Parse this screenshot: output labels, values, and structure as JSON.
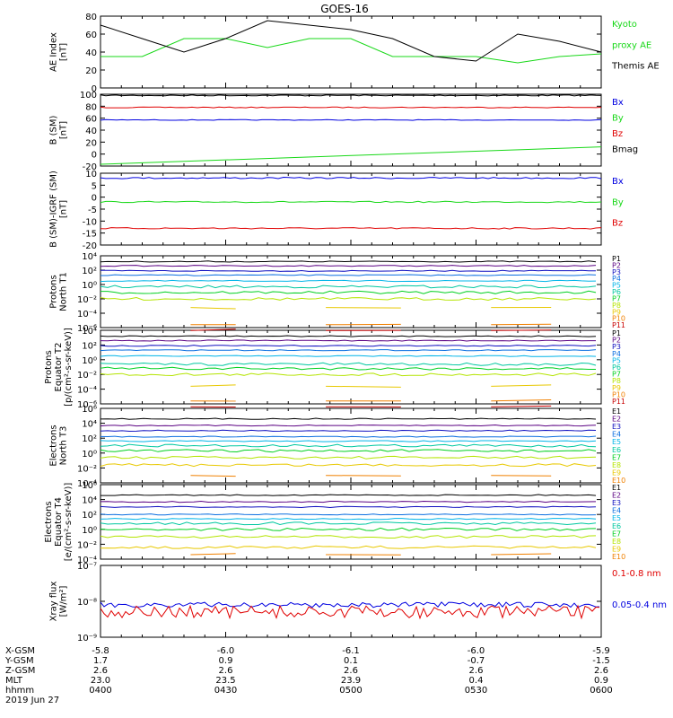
{
  "title": "GOES-16",
  "colors": {
    "black": "#000000",
    "red": "#e00000",
    "green": "#18d818",
    "blue": "#0000e0",
    "P1": "#000000",
    "P2": "#5a0082",
    "P3": "#1010c0",
    "P4": "#0a6ee0",
    "P5": "#00b4e8",
    "P6": "#00c8a0",
    "P7": "#00d020",
    "P8": "#b4e400",
    "P9": "#e8c800",
    "P10": "#f08000",
    "P11": "#c80000"
  },
  "panels": [
    {
      "id": "ae",
      "ylabel": [
        "AE Index",
        "[nT]"
      ],
      "ticks": [
        "80",
        "60",
        "40",
        "20",
        "0"
      ],
      "legend": [
        {
          "text": "Kyoto",
          "color": "green"
        },
        {
          "text": "proxy AE",
          "color": "green"
        },
        {
          "text": "Themis AE",
          "color": "black"
        }
      ]
    },
    {
      "id": "bsm",
      "ylabel": [
        "B (SM)",
        "[nT]"
      ],
      "ticks": [
        "100",
        "80",
        "60",
        "40",
        "20",
        "0",
        "-20"
      ],
      "legend": [
        {
          "text": "Bx",
          "color": "blue"
        },
        {
          "text": "By",
          "color": "green"
        },
        {
          "text": "Bz",
          "color": "red"
        },
        {
          "text": "Bmag",
          "color": "black"
        }
      ]
    },
    {
      "id": "bigrf",
      "ylabel": [
        "B (SM)-IGRF (SM)",
        "[nT]"
      ],
      "ticks": [
        "10",
        "5",
        "0",
        "-5",
        "-10",
        "-15",
        "-20"
      ],
      "legend": [
        {
          "text": "Bx",
          "color": "blue"
        },
        {
          "text": "By",
          "color": "green"
        },
        {
          "text": "Bz",
          "color": "red"
        }
      ]
    },
    {
      "id": "pn",
      "ylabel": [
        "Protons",
        "North T1"
      ],
      "ticks": [
        "10⁴",
        "10²",
        "10⁰",
        "10⁻²",
        "10⁻⁴",
        "10⁻⁶"
      ],
      "legend": [
        {
          "text": "P1"
        },
        {
          "text": "P2"
        },
        {
          "text": "P3"
        },
        {
          "text": "P4"
        },
        {
          "text": "P5"
        },
        {
          "text": "P6"
        },
        {
          "text": "P7"
        },
        {
          "text": "P8"
        },
        {
          "text": "P9"
        },
        {
          "text": "P10"
        },
        {
          "text": "P11"
        }
      ]
    },
    {
      "id": "pe",
      "ylabel": [
        "Protons",
        "Equator T2",
        "[p/(cm²-s-sr-keV)]"
      ],
      "ticks": [
        "10⁴",
        "10²",
        "10⁰",
        "10⁻²",
        "10⁻⁴",
        "10⁻⁶"
      ],
      "legend": [
        {
          "text": "P1"
        },
        {
          "text": "P2"
        },
        {
          "text": "P3"
        },
        {
          "text": "P4"
        },
        {
          "text": "P5"
        },
        {
          "text": "P6"
        },
        {
          "text": "P7"
        },
        {
          "text": "P8"
        },
        {
          "text": "P9"
        },
        {
          "text": "P10"
        },
        {
          "text": "P11"
        }
      ]
    },
    {
      "id": "en",
      "ylabel": [
        "Electrons",
        "North T3"
      ],
      "ticks": [
        "10⁶",
        "10⁴",
        "10²",
        "10⁰",
        "10⁻²",
        "10⁻⁴"
      ],
      "legend": [
        {
          "text": "E1"
        },
        {
          "text": "E2"
        },
        {
          "text": "E3"
        },
        {
          "text": "E4"
        },
        {
          "text": "E5"
        },
        {
          "text": "E6"
        },
        {
          "text": "E7"
        },
        {
          "text": "E8"
        },
        {
          "text": "E9"
        },
        {
          "text": "E10"
        }
      ]
    },
    {
      "id": "ee",
      "ylabel": [
        "Electrons",
        "Equator T4",
        "[e/(cm²-s-sr-keV)]"
      ],
      "ticks": [
        "10⁶",
        "10⁴",
        "10²",
        "10⁰",
        "10⁻²",
        "10⁻⁴"
      ],
      "legend": [
        {
          "text": "E1"
        },
        {
          "text": "E2"
        },
        {
          "text": "E3"
        },
        {
          "text": "E4"
        },
        {
          "text": "E5"
        },
        {
          "text": "E6"
        },
        {
          "text": "E7"
        },
        {
          "text": "E8"
        },
        {
          "text": "E9"
        },
        {
          "text": "E10"
        }
      ]
    },
    {
      "id": "xr",
      "ylabel": [
        "Xray flux",
        "[W/m²]"
      ],
      "ticks": [
        "10⁻⁷",
        "10⁻⁸",
        "10⁻⁹"
      ],
      "legend": [
        {
          "text": "0.1-0.8 nm",
          "color": "red"
        },
        {
          "text": "0.05-0.4 nm",
          "color": "blue"
        }
      ]
    }
  ],
  "axis_table": {
    "row_labels": [
      "X-GSM",
      "Y-GSM",
      "Z-GSM",
      "MLT",
      "hhmm",
      "2019 Jun 27"
    ],
    "columns": [
      [
        "-5.8",
        "1.7",
        "2.6",
        "23.0",
        "0400"
      ],
      [
        "-6.0",
        "0.9",
        "2.6",
        "23.5",
        "0430"
      ],
      [
        "-6.1",
        "0.1",
        "2.6",
        "23.9",
        "0500"
      ],
      [
        "-6.0",
        "-0.7",
        "2.6",
        "0.4",
        "0530"
      ],
      [
        "-5.9",
        "-1.5",
        "2.6",
        "0.9",
        "0600"
      ]
    ]
  },
  "chart_data": {
    "type": "line",
    "time_minutes": [
      0,
      10,
      20,
      30,
      40,
      50,
      60,
      70,
      80,
      90,
      100,
      110,
      120
    ],
    "ae_kyoto_proxy": [
      35,
      35,
      55,
      55,
      45,
      55,
      55,
      35,
      35,
      35,
      28,
      35,
      38
    ],
    "ae_themis": [
      70,
      55,
      40,
      55,
      75,
      70,
      65,
      55,
      35,
      30,
      60,
      52,
      40
    ],
    "b_sm": {
      "Bx": 57,
      "By_start": -17,
      "By_end": 12,
      "Bz": 78,
      "Bmag": 98,
      "ylim": [
        -20,
        100
      ]
    },
    "b_minus_igrf": {
      "Bx": 8,
      "By": -2,
      "Bz": -13,
      "ylim": [
        -20,
        10
      ]
    },
    "proton_north_log_levels": [
      3.2,
      2.6,
      1.9,
      1.3,
      0.5,
      -0.3,
      -1.1,
      -2.0,
      -3.2,
      -5.6,
      -6.4
    ],
    "proton_equator_log_levels": [
      3.2,
      2.6,
      1.9,
      1.3,
      0.5,
      -0.6,
      -1.2,
      -2.0,
      -3.6,
      -5.6,
      -6.4
    ],
    "electron_north_log_levels": [
      4.6,
      3.7,
      3.0,
      2.2,
      1.6,
      1.0,
      0.3,
      -0.6,
      -1.6,
      -3.0
    ],
    "electron_equator_log_levels": [
      4.6,
      3.7,
      3.0,
      2.0,
      1.4,
      0.8,
      0.0,
      -1.0,
      -2.4,
      -3.4
    ],
    "xray_0.1_0.8nm": 5e-09,
    "xray_0.05_0.4nm": 8e-09
  }
}
